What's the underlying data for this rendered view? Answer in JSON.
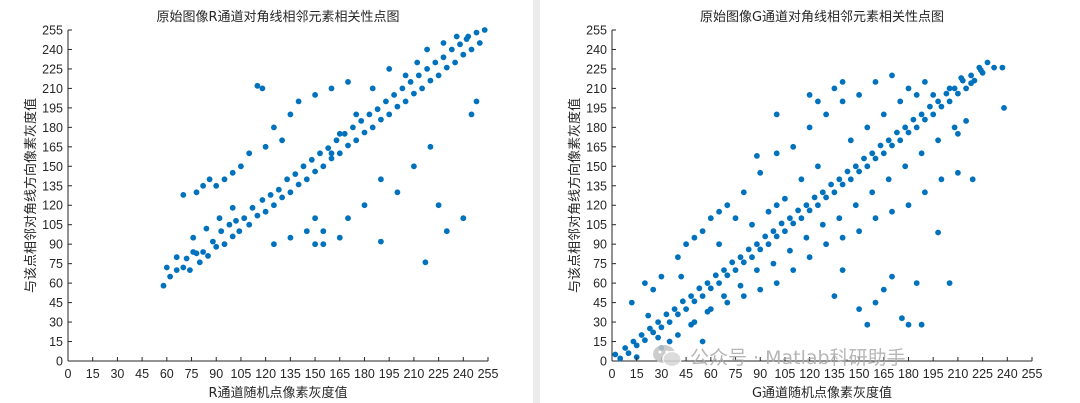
{
  "watermark": {
    "text": "公众号 · Matlab科研助手",
    "icon": "wechat-icon"
  },
  "chart_data": [
    {
      "type": "scatter",
      "title": "原始图像R通道对角线相邻元素相关性点图",
      "xlabel": "R通道随机点像素灰度值",
      "ylabel": "与该点相邻对角线方向像素灰度值",
      "xlim": [
        0,
        255
      ],
      "ylim": [
        0,
        255
      ],
      "xticks": [
        0,
        15,
        30,
        45,
        60,
        75,
        90,
        105,
        120,
        135,
        150,
        165,
        180,
        195,
        210,
        225,
        240,
        255
      ],
      "yticks": [
        0,
        15,
        30,
        45,
        60,
        75,
        90,
        105,
        120,
        135,
        150,
        165,
        180,
        195,
        210,
        225,
        240,
        255
      ],
      "grid": false,
      "color": "#0072BD",
      "marker": "filled-circle",
      "points": [
        [
          58,
          58
        ],
        [
          62,
          65
        ],
        [
          66,
          70
        ],
        [
          70,
          72
        ],
        [
          72,
          79
        ],
        [
          74,
          70
        ],
        [
          76,
          84
        ],
        [
          78,
          83
        ],
        [
          80,
          76
        ],
        [
          82,
          84
        ],
        [
          85,
          81
        ],
        [
          88,
          92
        ],
        [
          90,
          88
        ],
        [
          93,
          100
        ],
        [
          95,
          90
        ],
        [
          98,
          105
        ],
        [
          100,
          96
        ],
        [
          102,
          108
        ],
        [
          104,
          100
        ],
        [
          107,
          110
        ],
        [
          110,
          105
        ],
        [
          112,
          118
        ],
        [
          115,
          112
        ],
        [
          118,
          124
        ],
        [
          120,
          115
        ],
        [
          123,
          128
        ],
        [
          125,
          120
        ],
        [
          128,
          132
        ],
        [
          130,
          126
        ],
        [
          133,
          140
        ],
        [
          135,
          130
        ],
        [
          138,
          144
        ],
        [
          140,
          136
        ],
        [
          143,
          150
        ],
        [
          145,
          140
        ],
        [
          148,
          155
        ],
        [
          150,
          146
        ],
        [
          153,
          160
        ],
        [
          155,
          150
        ],
        [
          158,
          164
        ],
        [
          160,
          156
        ],
        [
          163,
          170
        ],
        [
          165,
          160
        ],
        [
          168,
          175
        ],
        [
          170,
          166
        ],
        [
          173,
          180
        ],
        [
          175,
          170
        ],
        [
          178,
          185
        ],
        [
          180,
          176
        ],
        [
          183,
          190
        ],
        [
          185,
          180
        ],
        [
          188,
          194
        ],
        [
          190,
          186
        ],
        [
          193,
          200
        ],
        [
          195,
          190
        ],
        [
          198,
          205
        ],
        [
          200,
          196
        ],
        [
          203,
          210
        ],
        [
          205,
          200
        ],
        [
          208,
          215
        ],
        [
          210,
          206
        ],
        [
          213,
          220
        ],
        [
          215,
          210
        ],
        [
          218,
          225
        ],
        [
          220,
          216
        ],
        [
          223,
          230
        ],
        [
          225,
          220
        ],
        [
          228,
          234
        ],
        [
          230,
          226
        ],
        [
          233,
          240
        ],
        [
          235,
          230
        ],
        [
          238,
          244
        ],
        [
          240,
          236
        ],
        [
          243,
          250
        ],
        [
          245,
          240
        ],
        [
          248,
          253
        ],
        [
          250,
          245
        ],
        [
          253,
          255
        ],
        [
          120,
          165
        ],
        [
          125,
          180
        ],
        [
          130,
          170
        ],
        [
          135,
          190
        ],
        [
          110,
          160
        ],
        [
          105,
          150
        ],
        [
          100,
          145
        ],
        [
          95,
          140
        ],
        [
          90,
          135
        ],
        [
          140,
          200
        ],
        [
          150,
          205
        ],
        [
          160,
          210
        ],
        [
          170,
          215
        ],
        [
          115,
          212
        ],
        [
          118,
          210
        ],
        [
          82,
          135
        ],
        [
          70,
          128
        ],
        [
          86,
          140
        ],
        [
          78,
          130
        ],
        [
          210,
          150
        ],
        [
          220,
          165
        ],
        [
          200,
          130
        ],
        [
          190,
          140
        ],
        [
          180,
          120
        ],
        [
          170,
          110
        ],
        [
          165,
          95
        ],
        [
          155,
          90
        ],
        [
          145,
          100
        ],
        [
          135,
          95
        ],
        [
          125,
          90
        ],
        [
          150,
          110
        ],
        [
          190,
          92
        ],
        [
          217,
          76
        ],
        [
          225,
          120
        ],
        [
          230,
          100
        ],
        [
          240,
          110
        ],
        [
          245,
          190
        ],
        [
          248,
          200
        ],
        [
          150,
          90
        ],
        [
          155,
          100
        ],
        [
          160,
          160
        ],
        [
          165,
          175
        ],
        [
          175,
          190
        ],
        [
          185,
          210
        ],
        [
          195,
          225
        ],
        [
          205,
          220
        ],
        [
          212,
          230
        ],
        [
          218,
          240
        ],
        [
          228,
          245
        ],
        [
          236,
          250
        ],
        [
          242,
          248
        ],
        [
          100,
          118
        ],
        [
          92,
          110
        ],
        [
          84,
          102
        ],
        [
          76,
          95
        ],
        [
          66,
          80
        ],
        [
          60,
          72
        ]
      ]
    },
    {
      "type": "scatter",
      "title": "原始图像G通道对角线相邻元素相关性点图",
      "xlabel": "G通道随机点像素灰度值",
      "ylabel": "与该点相邻对角线方向像素灰度值",
      "xlim": [
        0,
        255
      ],
      "ylim": [
        0,
        255
      ],
      "xticks": [
        0,
        15,
        30,
        45,
        60,
        75,
        90,
        105,
        120,
        135,
        150,
        165,
        180,
        195,
        210,
        225,
        240,
        255
      ],
      "yticks": [
        0,
        15,
        30,
        45,
        60,
        75,
        90,
        105,
        120,
        135,
        150,
        165,
        180,
        195,
        210,
        225,
        240,
        255
      ],
      "grid": false,
      "color": "#0072BD",
      "marker": "filled-circle",
      "points": [
        [
          2,
          5
        ],
        [
          5,
          2
        ],
        [
          8,
          10
        ],
        [
          10,
          6
        ],
        [
          13,
          15
        ],
        [
          15,
          12
        ],
        [
          18,
          20
        ],
        [
          20,
          16
        ],
        [
          23,
          25
        ],
        [
          25,
          22
        ],
        [
          28,
          30
        ],
        [
          30,
          26
        ],
        [
          33,
          36
        ],
        [
          35,
          30
        ],
        [
          38,
          40
        ],
        [
          40,
          36
        ],
        [
          43,
          46
        ],
        [
          45,
          40
        ],
        [
          48,
          50
        ],
        [
          50,
          46
        ],
        [
          53,
          56
        ],
        [
          55,
          50
        ],
        [
          58,
          60
        ],
        [
          60,
          56
        ],
        [
          63,
          66
        ],
        [
          65,
          60
        ],
        [
          68,
          70
        ],
        [
          70,
          66
        ],
        [
          73,
          76
        ],
        [
          75,
          70
        ],
        [
          78,
          80
        ],
        [
          80,
          76
        ],
        [
          83,
          86
        ],
        [
          85,
          80
        ],
        [
          88,
          90
        ],
        [
          90,
          86
        ],
        [
          93,
          96
        ],
        [
          95,
          90
        ],
        [
          98,
          100
        ],
        [
          100,
          96
        ],
        [
          103,
          106
        ],
        [
          105,
          100
        ],
        [
          108,
          110
        ],
        [
          110,
          106
        ],
        [
          113,
          116
        ],
        [
          115,
          110
        ],
        [
          118,
          120
        ],
        [
          120,
          116
        ],
        [
          123,
          126
        ],
        [
          125,
          120
        ],
        [
          128,
          130
        ],
        [
          130,
          126
        ],
        [
          133,
          136
        ],
        [
          135,
          130
        ],
        [
          138,
          140
        ],
        [
          140,
          136
        ],
        [
          143,
          146
        ],
        [
          145,
          140
        ],
        [
          148,
          150
        ],
        [
          150,
          146
        ],
        [
          153,
          156
        ],
        [
          155,
          150
        ],
        [
          158,
          160
        ],
        [
          160,
          156
        ],
        [
          163,
          166
        ],
        [
          165,
          160
        ],
        [
          168,
          170
        ],
        [
          170,
          166
        ],
        [
          173,
          176
        ],
        [
          175,
          170
        ],
        [
          178,
          180
        ],
        [
          180,
          176
        ],
        [
          183,
          186
        ],
        [
          185,
          180
        ],
        [
          188,
          190
        ],
        [
          190,
          186
        ],
        [
          193,
          196
        ],
        [
          195,
          190
        ],
        [
          198,
          200
        ],
        [
          200,
          196
        ],
        [
          203,
          206
        ],
        [
          205,
          200
        ],
        [
          208,
          210
        ],
        [
          210,
          206
        ],
        [
          213,
          216
        ],
        [
          215,
          210
        ],
        [
          218,
          220
        ],
        [
          220,
          216
        ],
        [
          223,
          226
        ],
        [
          225,
          222
        ],
        [
          228,
          230
        ],
        [
          232,
          226
        ],
        [
          237,
          226
        ],
        [
          238,
          195
        ],
        [
          20,
          60
        ],
        [
          25,
          55
        ],
        [
          30,
          65
        ],
        [
          40,
          80
        ],
        [
          45,
          90
        ],
        [
          50,
          95
        ],
        [
          55,
          100
        ],
        [
          60,
          110
        ],
        [
          65,
          115
        ],
        [
          70,
          120
        ],
        [
          80,
          130
        ],
        [
          90,
          145
        ],
        [
          100,
          160
        ],
        [
          110,
          165
        ],
        [
          120,
          180
        ],
        [
          130,
          190
        ],
        [
          140,
          200
        ],
        [
          150,
          205
        ],
        [
          160,
          215
        ],
        [
          170,
          220
        ],
        [
          180,
          210
        ],
        [
          190,
          215
        ],
        [
          120,
          205
        ],
        [
          125,
          200
        ],
        [
          135,
          210
        ],
        [
          140,
          215
        ],
        [
          100,
          120
        ],
        [
          105,
          125
        ],
        [
          88,
          158
        ],
        [
          100,
          190
        ],
        [
          60,
          40
        ],
        [
          70,
          45
        ],
        [
          80,
          50
        ],
        [
          90,
          55
        ],
        [
          100,
          60
        ],
        [
          110,
          70
        ],
        [
          120,
          80
        ],
        [
          130,
          90
        ],
        [
          140,
          95
        ],
        [
          150,
          100
        ],
        [
          160,
          110
        ],
        [
          170,
          115
        ],
        [
          180,
          120
        ],
        [
          190,
          130
        ],
        [
          200,
          140
        ],
        [
          210,
          145
        ],
        [
          219,
          140
        ],
        [
          205,
          60
        ],
        [
          176,
          33
        ],
        [
          180,
          28
        ],
        [
          188,
          28
        ],
        [
          155,
          28
        ],
        [
          160,
          45
        ],
        [
          165,
          55
        ],
        [
          170,
          65
        ],
        [
          150,
          40
        ],
        [
          140,
          70
        ],
        [
          135,
          50
        ],
        [
          210,
          175
        ],
        [
          215,
          185
        ],
        [
          198,
          99
        ],
        [
          185,
          60
        ],
        [
          40,
          20
        ],
        [
          50,
          30
        ],
        [
          55,
          15
        ],
        [
          30,
          10
        ],
        [
          35,
          15
        ],
        [
          75,
          110
        ],
        [
          65,
          90
        ],
        [
          85,
          105
        ],
        [
          95,
          115
        ],
        [
          115,
          140
        ],
        [
          125,
          150
        ],
        [
          145,
          170
        ],
        [
          155,
          180
        ],
        [
          165,
          190
        ],
        [
          175,
          200
        ],
        [
          185,
          205
        ],
        [
          195,
          205
        ],
        [
          205,
          210
        ],
        [
          212,
          218
        ],
        [
          218,
          214
        ],
        [
          224,
          224
        ],
        [
          15,
          3
        ],
        [
          12,
          45
        ],
        [
          22,
          35
        ],
        [
          28,
          18
        ],
        [
          42,
          65
        ],
        [
          48,
          28
        ],
        [
          58,
          38
        ],
        [
          68,
          50
        ],
        [
          78,
          58
        ],
        [
          88,
          70
        ],
        [
          98,
          75
        ],
        [
          108,
          85
        ],
        [
          118,
          95
        ],
        [
          128,
          105
        ],
        [
          138,
          110
        ],
        [
          148,
          120
        ],
        [
          158,
          130
        ],
        [
          168,
          140
        ],
        [
          178,
          150
        ],
        [
          188,
          160
        ],
        [
          198,
          170
        ],
        [
          208,
          180
        ]
      ]
    }
  ]
}
